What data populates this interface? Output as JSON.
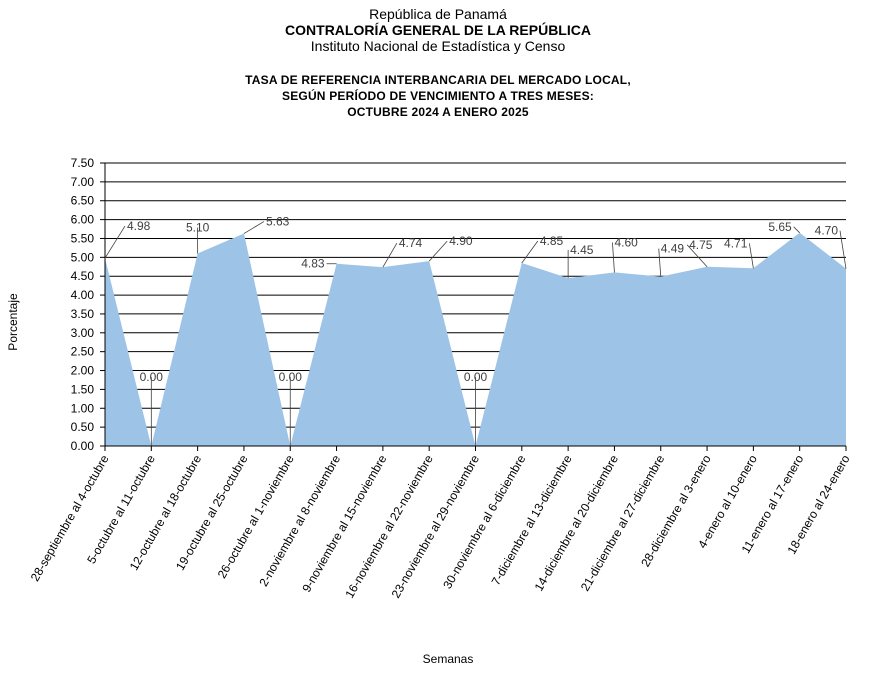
{
  "header": {
    "line1": "República de Panamá",
    "line2": "CONTRALORÍA GENERAL DE LA REPÚBLICA",
    "line3": "Instituto Nacional de Estadística y Censo"
  },
  "chart_data": {
    "type": "area",
    "title_lines": [
      "TASA DE REFERENCIA  INTERBANCARIA  DEL  MERCADO  LOCAL,",
      "SEGÚN  PERÍODO  DE  VENCIMIENTO  A  TRES  MESES:",
      "OCTUBRE  2024  A  ENERO  2025"
    ],
    "xlabel": "Semanas",
    "ylabel": "Porcentaje",
    "ylim": [
      0,
      7.5
    ],
    "yticks": [
      "0.00",
      "0.50",
      "1.00",
      "1.50",
      "2.00",
      "2.50",
      "3.00",
      "3.50",
      "4.00",
      "4.50",
      "5.00",
      "5.50",
      "6.00",
      "6.50",
      "7.00",
      "7.50"
    ],
    "grid": true,
    "fill_color": "#9dc3e6",
    "categories": [
      "28-septiembre al 4-octubre",
      "5-octubre al 11-octubre",
      "12-octubre al 18-octubre",
      "19-octubre al 25-octubre",
      "26-octubre al 1-noviembre",
      "2-noviembre al 8-noviembre",
      "9-noviembre al 15-noviembre",
      "16-noviembre al 22-noviembre",
      "23-noviembre al 29-noviembre",
      "30-noviembre al 6-diciembre",
      "7-diciembre al 13-diciembre",
      "14-diciembre al 20-diciembre",
      "21-diciembre al 27-diciembre",
      "28-diciembre al 3-enero",
      "4-enero al 10-enero",
      "11-enero al 17-enero",
      "18-enero al 24-enero"
    ],
    "values": [
      4.98,
      0.0,
      5.1,
      5.63,
      0.0,
      4.83,
      4.74,
      4.9,
      0.0,
      4.85,
      4.45,
      4.6,
      4.49,
      4.75,
      4.71,
      5.65,
      4.7
    ],
    "data_labels": [
      "4.98",
      "0.00",
      "5.10",
      "5.63",
      "0.00",
      "4.83",
      "4.74",
      "4.90",
      "0.00",
      "4.85",
      "4.45",
      "4.60",
      "4.49",
      "4.75",
      "4.71",
      "5.65",
      "4.70"
    ]
  }
}
